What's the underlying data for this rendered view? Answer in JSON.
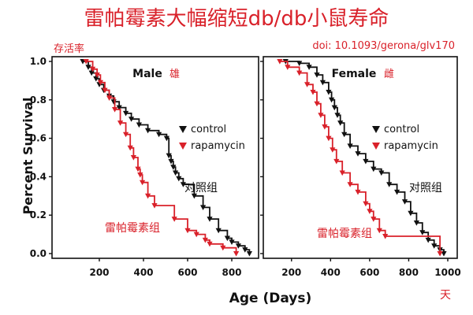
{
  "title": "雷帕霉素大幅缩短db/db小鼠寿命",
  "doi": "doi: 10.1093/gerona/glv170",
  "survival_cn": "存活率",
  "days_cn": "天",
  "ylabel": "Percent Survival",
  "xlabel": "Age (Days)",
  "colors": {
    "control": "#111111",
    "rapamycin": "#d9212a",
    "title": "#d9212a"
  },
  "legend_labels": {
    "control": "control",
    "rapamycin": "rapamycin"
  },
  "chart_data": [
    {
      "type": "line",
      "subtitle": "Male",
      "subtitle_cn": "雄",
      "annotations": {
        "control_cn": "对照组",
        "rapamycin_cn": "雷帕霉素组"
      },
      "xlim": [
        100,
        900
      ],
      "ylim": [
        0,
        1.0
      ],
      "xticks": [
        200,
        400,
        600,
        800
      ],
      "yticks": [
        "0.0",
        "0.2",
        "0.4",
        "0.6",
        "0.8",
        "1.0"
      ],
      "legend_position": "right-middle",
      "series": [
        {
          "name": "control",
          "color": "#111111",
          "x": [
            125,
            150,
            165,
            185,
            200,
            220,
            245,
            265,
            290,
            320,
            345,
            380,
            420,
            470,
            505,
            515,
            525,
            535,
            545,
            560,
            580,
            630,
            670,
            700,
            740,
            780,
            800,
            830,
            860,
            880
          ],
          "y": [
            1.0,
            0.97,
            0.94,
            0.91,
            0.88,
            0.85,
            0.82,
            0.79,
            0.76,
            0.73,
            0.7,
            0.67,
            0.64,
            0.62,
            0.6,
            0.51,
            0.48,
            0.45,
            0.42,
            0.39,
            0.36,
            0.3,
            0.24,
            0.18,
            0.12,
            0.08,
            0.06,
            0.04,
            0.02,
            0.0
          ]
        },
        {
          "name": "rapamycin",
          "color": "#d9212a",
          "x": [
            140,
            170,
            190,
            205,
            225,
            245,
            270,
            295,
            320,
            340,
            355,
            375,
            385,
            395,
            420,
            450,
            540,
            600,
            640,
            680,
            700,
            760,
            820
          ],
          "y": [
            1.0,
            0.96,
            0.93,
            0.89,
            0.85,
            0.81,
            0.75,
            0.68,
            0.62,
            0.55,
            0.5,
            0.44,
            0.41,
            0.37,
            0.3,
            0.25,
            0.18,
            0.12,
            0.1,
            0.07,
            0.05,
            0.03,
            0.0
          ]
        }
      ]
    },
    {
      "type": "line",
      "subtitle": "Female",
      "subtitle_cn": "雌",
      "annotations": {
        "control_cn": "对照组",
        "rapamycin_cn": "雷帕霉素组"
      },
      "xlim": [
        100,
        1000
      ],
      "ylim": [
        0,
        1.0
      ],
      "xticks": [
        200,
        400,
        600,
        800,
        1000
      ],
      "yticks": [
        "0.0",
        "0.2",
        "0.4",
        "0.6",
        "0.8",
        "1.0"
      ],
      "legend_position": "right-middle",
      "series": [
        {
          "name": "control",
          "color": "#111111",
          "x": [
            170,
            240,
            290,
            330,
            360,
            390,
            405,
            420,
            435,
            450,
            470,
            500,
            540,
            580,
            620,
            660,
            700,
            740,
            780,
            810,
            840,
            870,
            900,
            930,
            960,
            980
          ],
          "y": [
            1.0,
            0.99,
            0.97,
            0.93,
            0.89,
            0.84,
            0.8,
            0.76,
            0.72,
            0.68,
            0.62,
            0.56,
            0.52,
            0.48,
            0.44,
            0.42,
            0.36,
            0.32,
            0.27,
            0.21,
            0.16,
            0.11,
            0.07,
            0.04,
            0.02,
            0.0
          ]
        },
        {
          "name": "rapamycin",
          "color": "#d9212a",
          "x": [
            140,
            180,
            240,
            280,
            310,
            330,
            350,
            370,
            390,
            410,
            430,
            460,
            500,
            540,
            580,
            600,
            620,
            650,
            680,
            960
          ],
          "y": [
            1.0,
            0.97,
            0.94,
            0.88,
            0.84,
            0.78,
            0.72,
            0.66,
            0.6,
            0.54,
            0.48,
            0.42,
            0.36,
            0.32,
            0.26,
            0.22,
            0.18,
            0.12,
            0.09,
            0.0
          ]
        }
      ]
    }
  ]
}
